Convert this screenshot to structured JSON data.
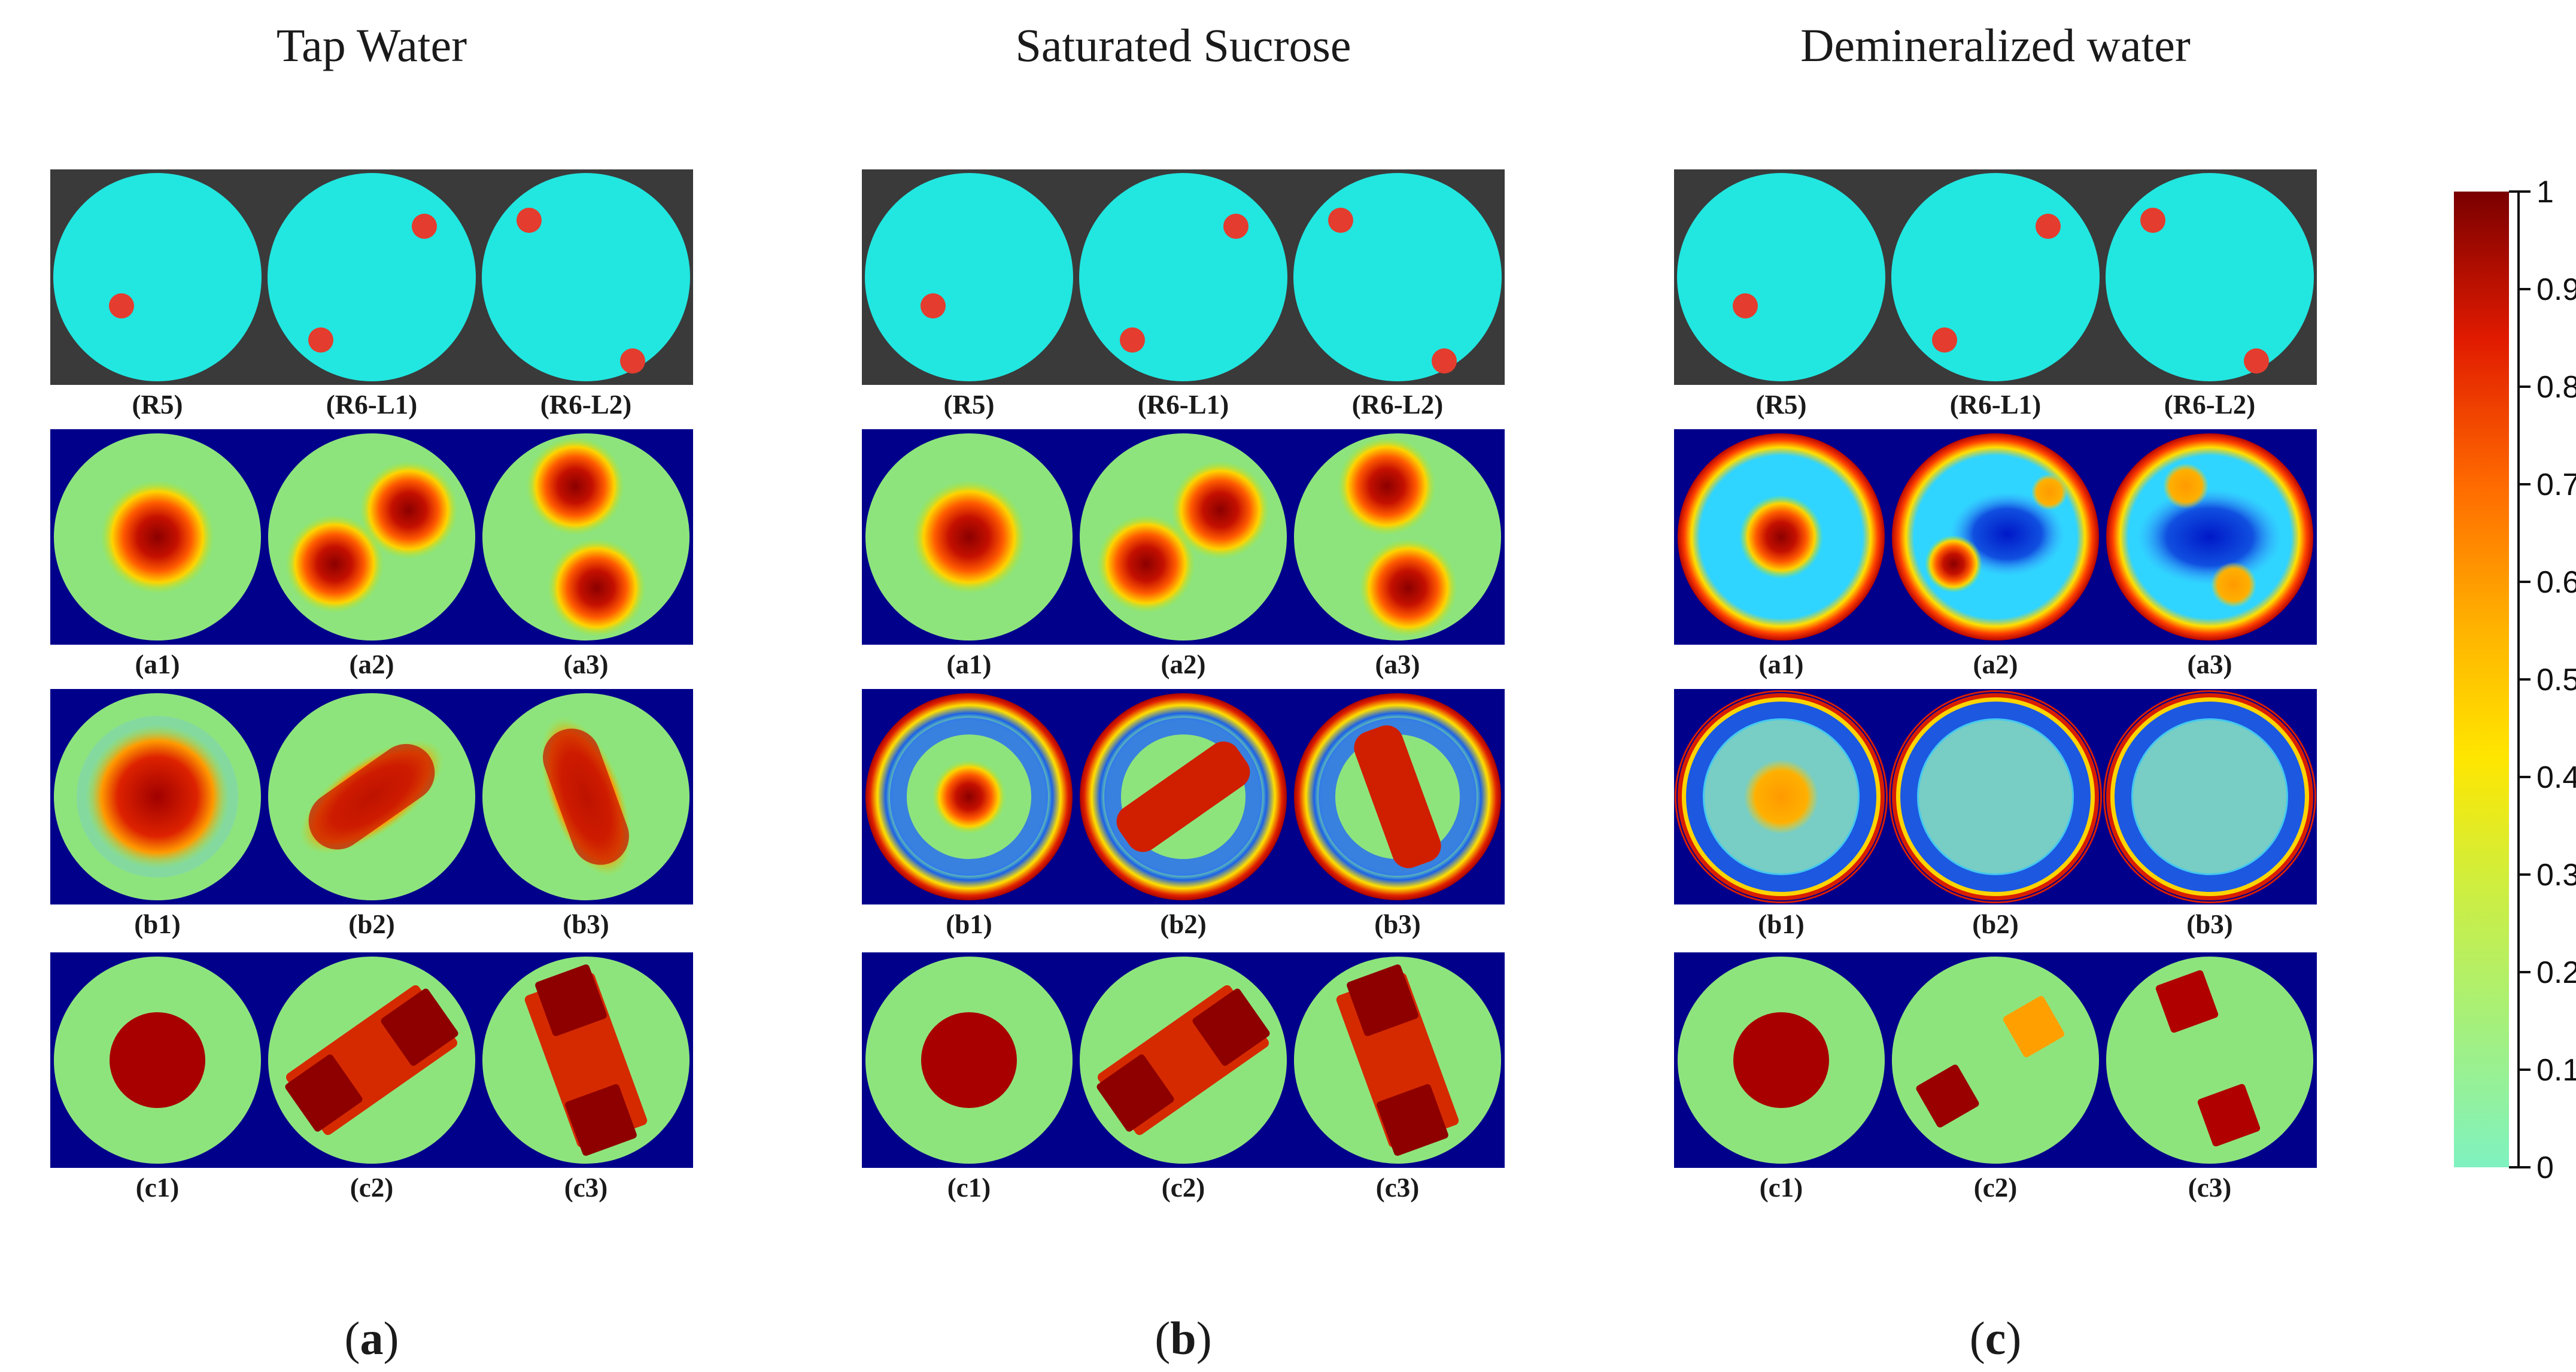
{
  "figure": {
    "groups": [
      {
        "id": "tap",
        "title": "Tap Water",
        "panel_letter": "a",
        "rows": [
          {
            "type": "reference",
            "captions": [
              "(R5)",
              "(R6-L1)",
              "(R6-L2)"
            ]
          },
          {
            "type": "reconstruction",
            "style": "smooth",
            "captions": [
              "(a1)",
              "(a2)",
              "(a3)"
            ]
          },
          {
            "type": "reconstruction",
            "style": "blurred",
            "captions": [
              "(b1)",
              "(b2)",
              "(b3)"
            ]
          },
          {
            "type": "reconstruction",
            "style": "sharp",
            "captions": [
              "(c1)",
              "(c2)",
              "(c3)"
            ]
          }
        ]
      },
      {
        "id": "sucrose",
        "title": "Saturated Sucrose",
        "panel_letter": "b",
        "rows": [
          {
            "type": "reference",
            "captions": [
              "(R5)",
              "(R6-L1)",
              "(R6-L2)"
            ]
          },
          {
            "type": "reconstruction",
            "style": "smooth",
            "captions": [
              "(a1)",
              "(a2)",
              "(a3)"
            ]
          },
          {
            "type": "reconstruction",
            "style": "ringed",
            "captions": [
              "(b1)",
              "(b2)",
              "(b3)"
            ]
          },
          {
            "type": "reconstruction",
            "style": "sharp",
            "captions": [
              "(c1)",
              "(c2)",
              "(c3)"
            ]
          }
        ]
      },
      {
        "id": "demin",
        "title": "Demineralized water",
        "panel_letter": "c",
        "rows": [
          {
            "type": "reference",
            "captions": [
              "(R5)",
              "(R6-L1)",
              "(R6-L2)"
            ]
          },
          {
            "type": "reconstruction",
            "style": "noisy",
            "captions": [
              "(a1)",
              "(a2)",
              "(a3)"
            ]
          },
          {
            "type": "reconstruction",
            "style": "edge",
            "captions": [
              "(b1)",
              "(b2)",
              "(b3)"
            ]
          },
          {
            "type": "reconstruction",
            "style": "separated",
            "captions": [
              "(c1)",
              "(c2)",
              "(c3)"
            ]
          }
        ]
      }
    ],
    "colorbar": {
      "min": 0,
      "max": 1,
      "ticks": [
        "1",
        "0.9",
        "0.8",
        "0.7",
        "0.6",
        "0.5",
        "0.4",
        "0.3",
        "0.2",
        "0.1",
        "0"
      ]
    },
    "colors": {
      "background": "#ffffff",
      "reference_frame": "#3a3a3a",
      "phantom": "#22e6e0",
      "inclusion": "#e43c2e",
      "recon_background": "#00008b"
    }
  }
}
